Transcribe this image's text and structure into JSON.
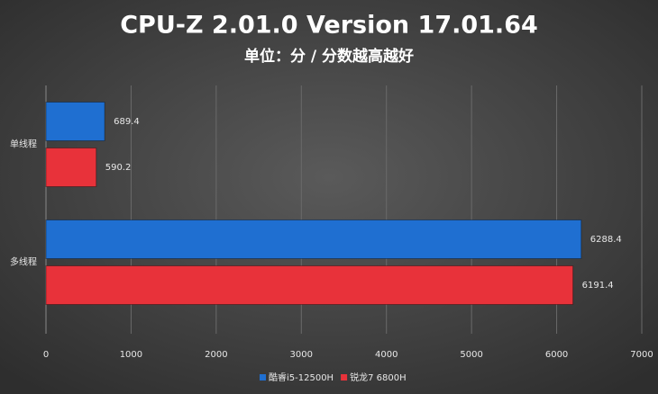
{
  "chart_data": {
    "type": "bar",
    "orientation": "horizontal",
    "title": "CPU-Z 2.01.0 Version 17.01.64",
    "subtitle": "单位：分 / 分数越高越好",
    "categories": [
      "单线程",
      "多线程"
    ],
    "series": [
      {
        "name": "酷睿i5-12500H",
        "color": "#1f6fd1",
        "values": [
          689.4,
          6288.4
        ]
      },
      {
        "name": "锐龙7 6800H",
        "color": "#e8323a",
        "values": [
          590.2,
          6191.4
        ]
      }
    ],
    "xlim": [
      0,
      7000
    ],
    "xticks": [
      0,
      1000,
      2000,
      3000,
      4000,
      5000,
      6000,
      7000
    ],
    "grid": true,
    "legend": "bottom"
  }
}
